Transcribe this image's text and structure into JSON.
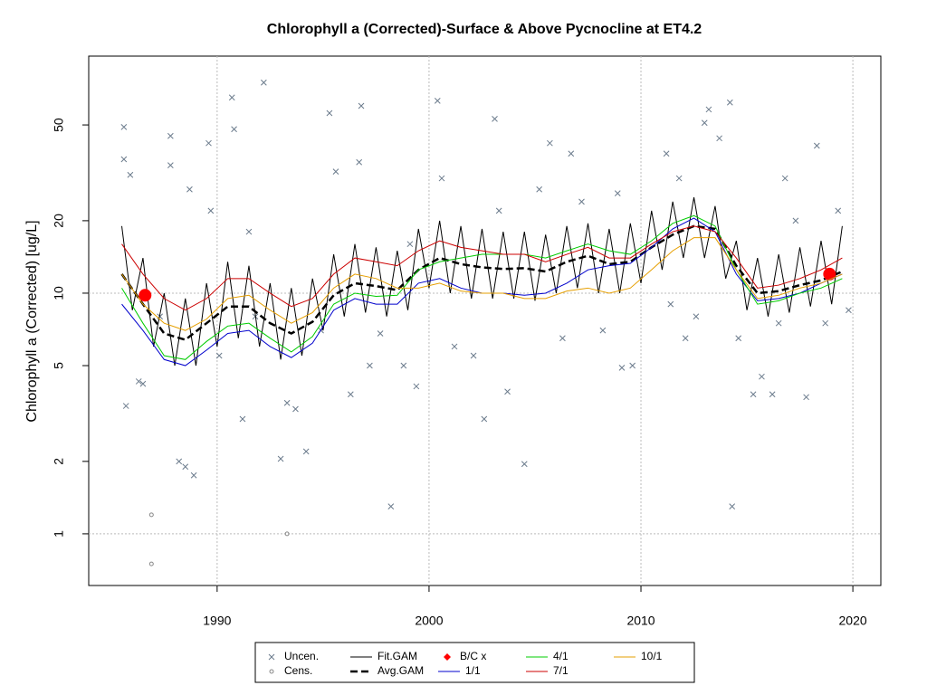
{
  "chart_data": {
    "type": "line",
    "title": "Chlorophyll a (Corrected)-Surface & Above Pycnocline at ET4.2",
    "y_label": "Chlorophyll a (Corrected) [ug/L]",
    "xlim": [
      1983.94,
      2021.32
    ],
    "xticks": [
      1990,
      2000,
      2010,
      2020
    ],
    "ylim": [
      0.61,
      96.6
    ],
    "yticks": [
      1,
      2,
      5,
      10,
      20,
      50
    ],
    "ylog": true,
    "grid": true,
    "legend": "bottom",
    "series": [
      {
        "name": "Uncen.",
        "color": "#6b7b8c",
        "style": "cross",
        "x": [
          1985.6,
          1985.6,
          1985.7,
          1985.9,
          1986.3,
          1986.5,
          1987.8,
          1987.8,
          1988.2,
          1988.5,
          1988.9,
          1988.7,
          1989.6,
          1989.7,
          1990.7,
          1990.8,
          1991.2,
          1991.5,
          1992.2,
          1993,
          1993.3,
          1993.7,
          1994.2,
          1995.3,
          1995.6,
          1996.3,
          1996.8,
          1996.7,
          1997.2,
          1998.2,
          1998.8,
          1999.4,
          2000.4,
          2000.6,
          2001.2,
          2002.1,
          2002.6,
          2003.1,
          2003.7,
          2004.5,
          2005.2,
          2005.7,
          2006.7,
          2008.9,
          2009.1,
          2009.6,
          2011.2,
          2011.8,
          2012.1,
          2012.6,
          2013,
          2013.2,
          2013.7,
          2014.2,
          2014.3,
          2014.6,
          2015.3,
          2015.7,
          2016.2,
          2016.8,
          2017.3,
          2017.8,
          2018.3,
          2018.7,
          2019.3,
          2019.8,
          1990.1,
          1991.8,
          1994.9,
          1997.7,
          2006.3,
          2008.2,
          2011.4,
          2016.5,
          1987.3,
          1999.1,
          2003.3,
          2007.2
        ],
        "values": [
          49,
          36,
          3.4,
          31,
          4.3,
          4.2,
          45,
          34,
          2,
          1.9,
          1.75,
          27,
          42,
          22,
          65,
          48,
          3,
          18,
          75,
          2.05,
          3.5,
          3.3,
          2.2,
          56,
          32,
          3.8,
          60,
          35,
          5,
          1.3,
          5,
          4.1,
          63,
          30,
          6,
          5.5,
          3,
          53,
          3.9,
          1.95,
          27,
          42,
          38,
          26,
          4.9,
          5,
          38,
          30,
          6.5,
          8,
          51,
          58,
          44,
          62,
          1.3,
          6.5,
          3.8,
          4.5,
          3.8,
          30,
          20,
          3.7,
          41,
          7.5,
          22,
          8.5,
          5.5,
          8,
          7,
          6.8,
          6.5,
          7,
          9,
          7.5,
          8,
          16,
          22,
          24
        ]
      },
      {
        "name": "Cens.",
        "color": "#888888",
        "style": "circle",
        "x": [
          1986.9,
          1986.9,
          1993.3
        ],
        "values": [
          1.2,
          0.75,
          1.0
        ]
      },
      {
        "name": "Fit.GAM",
        "color": "#000000",
        "style": "line",
        "x": [
          1985.5,
          1986,
          1986.5,
          1987,
          1987.5,
          1988,
          1988.5,
          1989,
          1989.5,
          1990,
          1990.5,
          1991,
          1991.5,
          1992,
          1992.5,
          1993,
          1993.5,
          1994,
          1994.5,
          1995,
          1995.5,
          1996,
          1996.5,
          1997,
          1997.5,
          1998,
          1998.5,
          1999,
          1999.5,
          2000,
          2000.5,
          2001,
          2001.5,
          2002,
          2002.5,
          2003,
          2003.5,
          2004,
          2004.5,
          2005,
          2005.5,
          2006,
          2006.5,
          2007,
          2007.5,
          2008,
          2008.5,
          2009,
          2009.5,
          2010,
          2010.5,
          2011,
          2011.5,
          2012,
          2012.5,
          2013,
          2013.5,
          2014,
          2014.5,
          2015,
          2015.5,
          2016,
          2016.5,
          2017,
          2017.5,
          2018,
          2018.5,
          2019,
          2019.5
        ],
        "values": [
          19,
          8.5,
          14,
          6,
          10,
          5,
          9.5,
          5,
          11,
          6,
          13.5,
          6.5,
          13,
          6,
          11,
          5.3,
          10.5,
          5.5,
          11.5,
          7,
          14.5,
          8,
          16,
          8.3,
          15.5,
          8,
          15,
          8.5,
          18.5,
          10.5,
          20,
          10,
          19,
          9.5,
          18.5,
          9.5,
          18,
          9.5,
          18,
          9.3,
          17.5,
          10,
          19,
          10.5,
          19.5,
          10,
          18.5,
          10,
          19.5,
          11,
          22,
          12.5,
          24,
          14,
          25,
          14,
          23,
          11.5,
          16.5,
          8.5,
          14,
          8,
          14.5,
          8.3,
          15.5,
          8.8,
          16.5,
          9,
          19
        ]
      },
      {
        "name": "Avg.GAM",
        "color": "#000000",
        "style": "dashed",
        "x": [
          1985.5,
          1986.5,
          1987.5,
          1988.5,
          1989.5,
          1990.5,
          1991.5,
          1992.5,
          1993.5,
          1994.5,
          1995.5,
          1996.5,
          1997.5,
          1998.5,
          1999.5,
          2000.5,
          2001.5,
          2002.5,
          2003.5,
          2004.5,
          2005.5,
          2006.5,
          2007.5,
          2008.5,
          2009.5,
          2010.5,
          2011.5,
          2012.5,
          2013.5,
          2014.5,
          2015.5,
          2016.5,
          2017.5,
          2018.5,
          2019.5
        ],
        "values": [
          12,
          9,
          6.8,
          6.4,
          7.5,
          8.8,
          8.8,
          7.5,
          6.8,
          7.6,
          9.8,
          11,
          10.7,
          10.3,
          12.5,
          14,
          13.2,
          12.8,
          12.6,
          12.7,
          12.3,
          13.5,
          14.3,
          13.2,
          13.5,
          15.5,
          17.5,
          19,
          18.5,
          13,
          10,
          10.2,
          10.8,
          11.3,
          12.3
        ]
      },
      {
        "name": "B/C x",
        "color": "#ff0000",
        "style": "dot",
        "x": [
          1986.6,
          2018.9
        ],
        "values": [
          9.8,
          12
        ]
      },
      {
        "name": "1/1",
        "color": "#0000cc",
        "style": "line",
        "x": [
          1985.5,
          1986.5,
          1987.5,
          1988.5,
          1989.5,
          1990.5,
          1991.5,
          1992.5,
          1993.5,
          1994.5,
          1995.5,
          1996.5,
          1997.5,
          1998.5,
          1999.5,
          2000.5,
          2001.5,
          2002.5,
          2003.5,
          2004.5,
          2005.5,
          2006.5,
          2007.5,
          2008.5,
          2009.5,
          2010.5,
          2011.5,
          2012.5,
          2013.5,
          2014.5,
          2015.5,
          2016.5,
          2017.5,
          2018.5,
          2019.5
        ],
        "values": [
          9,
          7,
          5.3,
          5,
          5.8,
          6.8,
          7,
          6,
          5.4,
          6.2,
          8.5,
          9.5,
          9,
          9,
          11,
          11.5,
          10.5,
          10,
          10,
          9.8,
          10,
          11,
          12.5,
          13,
          13.3,
          15.5,
          18.5,
          20.5,
          18,
          12,
          9.3,
          9.5,
          10,
          11,
          12
        ]
      },
      {
        "name": "4/1",
        "color": "#00cc00",
        "style": "line",
        "x": [
          1985.5,
          1986.5,
          1987.5,
          1988.5,
          1989.5,
          1990.5,
          1991.5,
          1992.5,
          1993.5,
          1994.5,
          1995.5,
          1996.5,
          1997.5,
          1998.5,
          1999.5,
          2000.5,
          2001.5,
          2002.5,
          2003.5,
          2004.5,
          2005.5,
          2006.5,
          2007.5,
          2008.5,
          2009.5,
          2010.5,
          2011.5,
          2012.5,
          2013.5,
          2014.5,
          2015.5,
          2016.5,
          2017.5,
          2018.5,
          2019.5
        ],
        "values": [
          10.5,
          7.5,
          5.5,
          5.3,
          6.3,
          7.3,
          7.5,
          6.5,
          5.7,
          6.6,
          9,
          10,
          9.7,
          9.8,
          12.5,
          13.5,
          14,
          14.5,
          14.5,
          14.5,
          14,
          15,
          16,
          15,
          14.5,
          16.5,
          19.5,
          21,
          19,
          12.5,
          9,
          9.3,
          10,
          10.5,
          11.5
        ]
      },
      {
        "name": "7/1",
        "color": "#cc0000",
        "style": "line",
        "x": [
          1985.5,
          1986.5,
          1987.5,
          1988.5,
          1989.5,
          1990.5,
          1991.5,
          1992.5,
          1993.5,
          1994.5,
          1995.5,
          1996.5,
          1997.5,
          1998.5,
          1999.5,
          2000.5,
          2001.5,
          2002.5,
          2003.5,
          2004.5,
          2005.5,
          2006.5,
          2007.5,
          2008.5,
          2009.5,
          2010.5,
          2011.5,
          2012.5,
          2013.5,
          2014.5,
          2015.5,
          2016.5,
          2017.5,
          2018.5,
          2019.5
        ],
        "values": [
          16,
          12,
          9.5,
          8.5,
          9.5,
          11.5,
          11.5,
          10,
          8.8,
          9.5,
          12,
          14,
          13.5,
          13,
          15,
          16.5,
          15.5,
          15,
          14.5,
          14.5,
          13.5,
          14.5,
          15.5,
          14,
          14,
          16,
          18,
          19,
          18,
          14,
          10.5,
          10.8,
          11.5,
          12.5,
          14
        ]
      },
      {
        "name": "10/1",
        "color": "#e69f00",
        "style": "line",
        "x": [
          1985.5,
          1986.5,
          1987.5,
          1988.5,
          1989.5,
          1990.5,
          1991.5,
          1992.5,
          1993.5,
          1994.5,
          1995.5,
          1996.5,
          1997.5,
          1998.5,
          1999.5,
          2000.5,
          2001.5,
          2002.5,
          2003.5,
          2004.5,
          2005.5,
          2006.5,
          2007.5,
          2008.5,
          2009.5,
          2010.5,
          2011.5,
          2012.5,
          2013.5,
          2014.5,
          2015.5,
          2016.5,
          2017.5,
          2018.5,
          2019.5
        ],
        "values": [
          12,
          9,
          7.5,
          7,
          7.8,
          9.5,
          9.8,
          8.5,
          7.5,
          8.3,
          10.5,
          12,
          11.5,
          10.5,
          10.5,
          11,
          10.2,
          10,
          10,
          9.5,
          9.5,
          10.2,
          10.5,
          10,
          10.5,
          12.5,
          15,
          17,
          17,
          12.5,
          9.5,
          9.8,
          10.5,
          11,
          12
        ]
      }
    ]
  }
}
